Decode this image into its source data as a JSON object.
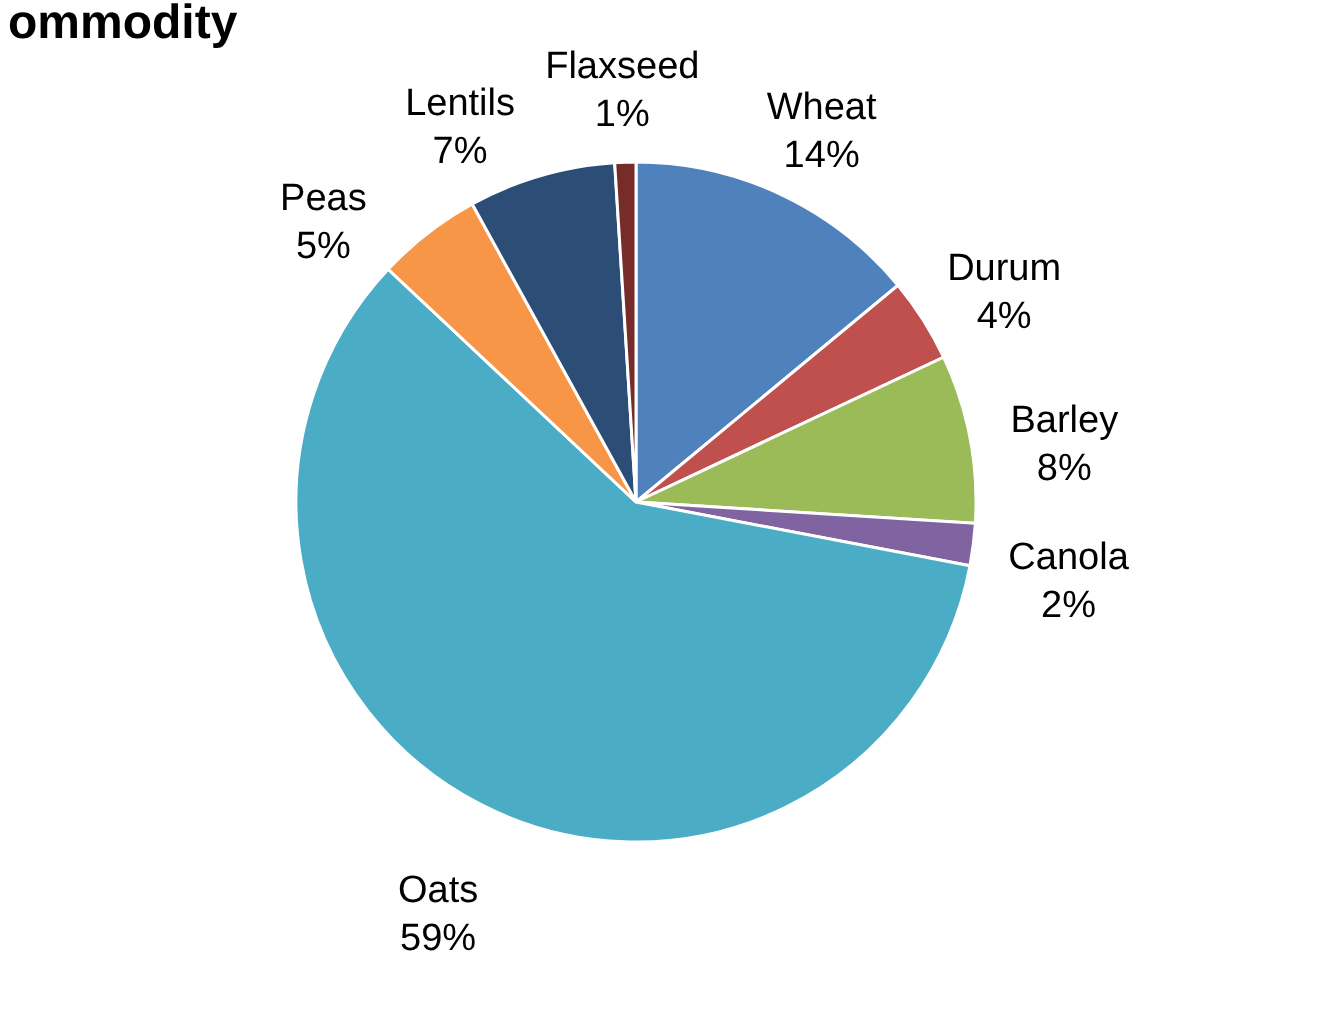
{
  "chart_data": {
    "type": "pie",
    "title": "ommodity",
    "categories": [
      "Wheat",
      "Durum",
      "Barley",
      "Canola",
      "Oats",
      "Peas",
      "Lentils",
      "Flaxseed"
    ],
    "values": [
      14,
      4,
      8,
      2,
      59,
      5,
      7,
      1
    ],
    "value_labels": [
      "14%",
      "4%",
      "8%",
      "2%",
      "59%",
      "5%",
      "7%",
      "1%"
    ],
    "colors": [
      "#4f81bd",
      "#c0504d",
      "#9bbb59",
      "#8064a2",
      "#4bacc6",
      "#f79646",
      "#2c4d75",
      "#772c2a"
    ]
  }
}
